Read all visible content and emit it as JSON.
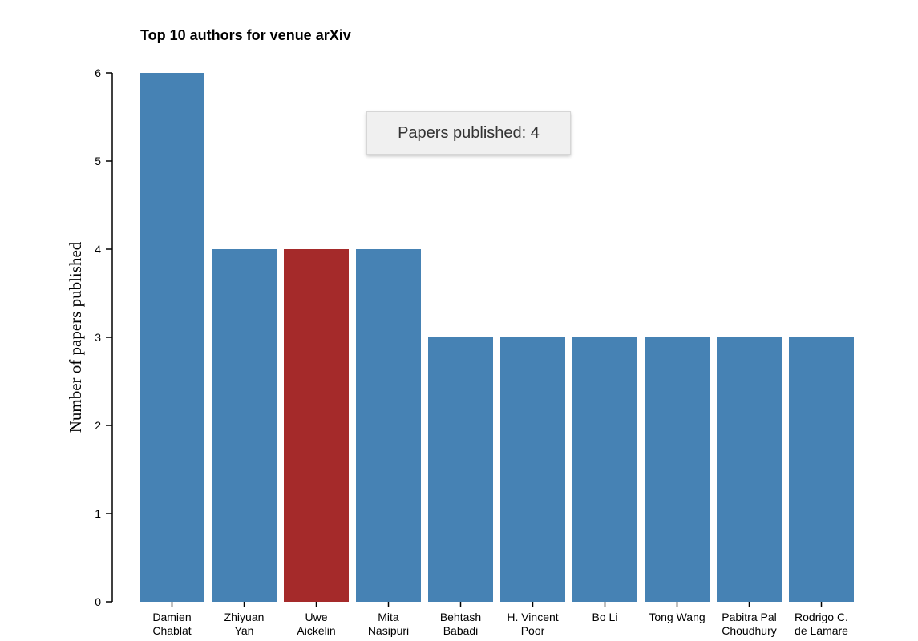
{
  "title": "Top 10 authors for venue arXiv",
  "tooltip": {
    "label": "Papers published: 4"
  },
  "colors": {
    "bar": "#4682b4",
    "highlight": "#a52a2a"
  },
  "chart_data": {
    "type": "bar",
    "categories": [
      [
        "Damien",
        "Chablat"
      ],
      [
        "Zhiyuan",
        "Yan"
      ],
      [
        "Uwe",
        "Aickelin"
      ],
      [
        "Mita",
        "Nasipuri"
      ],
      [
        "Behtash",
        "Babadi"
      ],
      [
        "H. Vincent",
        "Poor"
      ],
      [
        "Bo Li"
      ],
      [
        "Tong Wang"
      ],
      [
        "Pabitra Pal",
        "Choudhury"
      ],
      [
        "Rodrigo C.",
        "de Lamare"
      ]
    ],
    "values": [
      6,
      4,
      4,
      4,
      3,
      3,
      3,
      3,
      3,
      3
    ],
    "highlighted_index": 2,
    "ylabel": "Number of papers published",
    "xlabel": "",
    "ylim": [
      0,
      6
    ],
    "yticks": [
      0,
      1,
      2,
      3,
      4,
      5,
      6
    ],
    "grid": false,
    "legend": "none"
  }
}
